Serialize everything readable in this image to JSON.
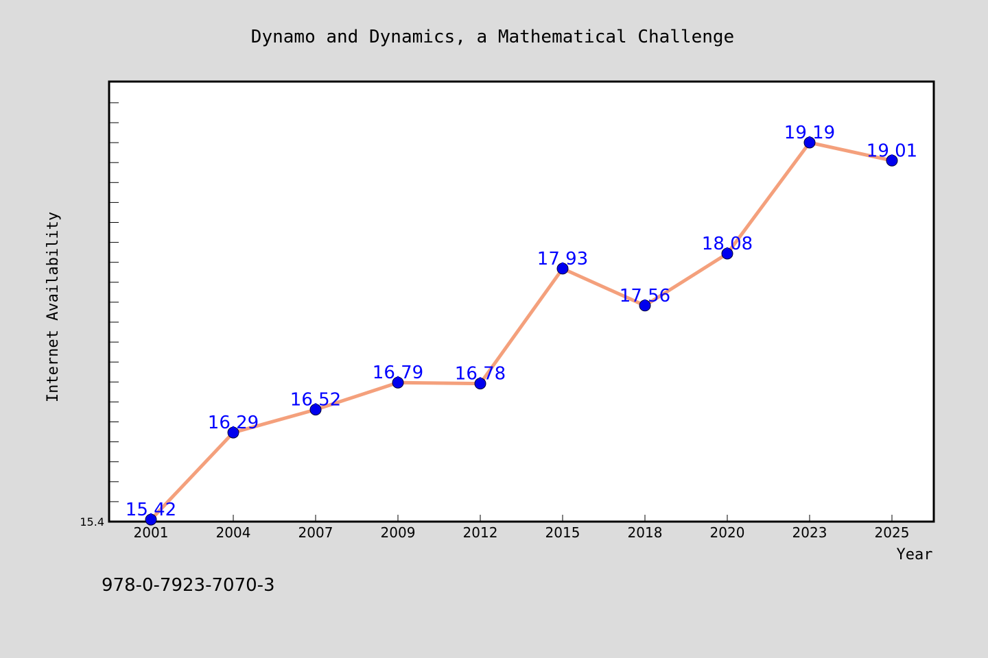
{
  "chart_data": {
    "type": "line",
    "title": "Dynamo and Dynamics, a Mathematical Challenge",
    "xlabel": "Year",
    "ylabel": "Internet Availability",
    "categories": [
      "2001",
      "2004",
      "2007",
      "2009",
      "2012",
      "2015",
      "2018",
      "2020",
      "2023",
      "2025"
    ],
    "series": [
      {
        "values": [
          15.42,
          16.29,
          16.52,
          16.79,
          16.78,
          17.93,
          17.56,
          18.08,
          19.19,
          19.01
        ],
        "labels": [
          "15.42",
          "16.29",
          "16.52",
          "16.79",
          "16.78",
          "17.93",
          "17.56",
          "18.08",
          "19.19",
          "19.01"
        ]
      }
    ],
    "ylim": [
      15.4,
      19.8
    ],
    "y_tick_labels": [
      "15.4"
    ],
    "line_color": "#f4a07c",
    "marker_color": "#0000ee",
    "label_color": "#0000ff",
    "grid": false
  },
  "footer_text": "978-0-7923-7070-3",
  "colors": {
    "background": "#dcdcdc",
    "plot_background": "#ffffff"
  }
}
